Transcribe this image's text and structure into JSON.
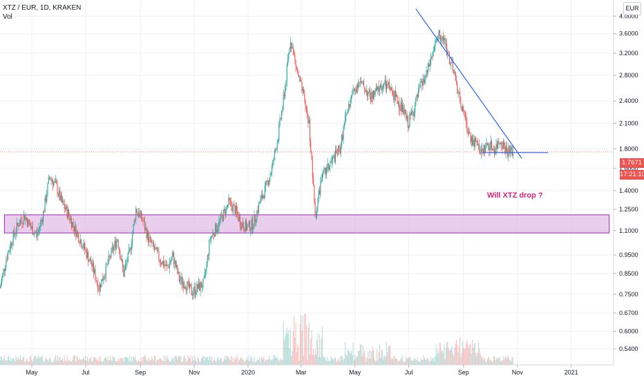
{
  "header": {
    "title": "XTZ / EUR, 1D, KRAKEN",
    "volume_label": "Vol"
  },
  "currency_button": "EUR",
  "annotation": "Will XTZ drop ?",
  "last_price_label": "1.7671",
  "countdown_label": "17:21:10",
  "colors": {
    "up": "#26a69a",
    "down": "#ef5350",
    "trendline": "#2962ff",
    "zone_fill": "#e1bee7",
    "zone_border": "#9c27b0",
    "annotation": "#d6247c",
    "last_price": "#ef5350"
  },
  "chart_data": {
    "type": "candlestick",
    "log_scale": true,
    "grid": true,
    "x_tick_labels": [
      "May",
      "Jul",
      "Sep",
      "Nov",
      "2020",
      "Mar",
      "May",
      "Jul",
      "Sep",
      "Nov",
      "2021"
    ],
    "y_tick_labels": [
      "4.0000",
      "3.6000",
      "3.2000",
      "2.8000",
      "2.4000",
      "2.1000",
      "1.8000",
      "1.6000",
      "1.4000",
      "1.2500",
      "1.1000",
      "0.9500",
      "0.8500",
      "0.7500",
      "0.6700",
      "0.6000",
      "0.5400"
    ],
    "y_range": [
      0.52,
      4.3
    ],
    "x_range": [
      "2019-03-26",
      "2021-02-18"
    ],
    "series": [
      {
        "values": [
          [
            "2019-03-26",
            0.78
          ],
          [
            "2019-04-02",
            0.93
          ],
          [
            "2019-04-09",
            1.05
          ],
          [
            "2019-04-16",
            1.15
          ],
          [
            "2019-04-23",
            1.2
          ],
          [
            "2019-04-30",
            1.12
          ],
          [
            "2019-05-07",
            1.07
          ],
          [
            "2019-05-14",
            1.22
          ],
          [
            "2019-05-21",
            1.52
          ],
          [
            "2019-05-28",
            1.45
          ],
          [
            "2019-06-04",
            1.3
          ],
          [
            "2019-06-11",
            1.22
          ],
          [
            "2019-06-18",
            1.12
          ],
          [
            "2019-06-25",
            1.04
          ],
          [
            "2019-07-02",
            0.96
          ],
          [
            "2019-07-09",
            0.88
          ],
          [
            "2019-07-16",
            0.78
          ],
          [
            "2019-07-23",
            0.86
          ],
          [
            "2019-07-30",
            0.96
          ],
          [
            "2019-08-06",
            1.05
          ],
          [
            "2019-08-13",
            0.85
          ],
          [
            "2019-08-20",
            0.97
          ],
          [
            "2019-08-27",
            1.25
          ],
          [
            "2019-09-03",
            1.18
          ],
          [
            "2019-09-10",
            1.05
          ],
          [
            "2019-09-17",
            0.98
          ],
          [
            "2019-09-24",
            0.92
          ],
          [
            "2019-10-01",
            0.88
          ],
          [
            "2019-10-08",
            0.94
          ],
          [
            "2019-10-15",
            0.82
          ],
          [
            "2019-10-22",
            0.8
          ],
          [
            "2019-10-29",
            0.76
          ],
          [
            "2019-11-05",
            0.78
          ],
          [
            "2019-11-12",
            0.8
          ],
          [
            "2019-11-19",
            1.05
          ],
          [
            "2019-11-26",
            1.12
          ],
          [
            "2019-12-03",
            1.2
          ],
          [
            "2019-12-10",
            1.3
          ],
          [
            "2019-12-17",
            1.25
          ],
          [
            "2019-12-24",
            1.15
          ],
          [
            "2019-12-31",
            1.12
          ],
          [
            "2020-01-07",
            1.15
          ],
          [
            "2020-01-14",
            1.3
          ],
          [
            "2020-01-21",
            1.42
          ],
          [
            "2020-01-28",
            1.6
          ],
          [
            "2020-02-04",
            1.95
          ],
          [
            "2020-02-11",
            2.5
          ],
          [
            "2020-02-18",
            3.5
          ],
          [
            "2020-02-25",
            2.9
          ],
          [
            "2020-03-03",
            2.5
          ],
          [
            "2020-03-10",
            2.1
          ],
          [
            "2020-03-17",
            1.2
          ],
          [
            "2020-03-24",
            1.5
          ],
          [
            "2020-03-31",
            1.6
          ],
          [
            "2020-04-07",
            1.7
          ],
          [
            "2020-04-14",
            1.8
          ],
          [
            "2020-04-21",
            2.2
          ],
          [
            "2020-04-28",
            2.5
          ],
          [
            "2020-05-05",
            2.7
          ],
          [
            "2020-05-12",
            2.6
          ],
          [
            "2020-05-19",
            2.45
          ],
          [
            "2020-05-26",
            2.55
          ],
          [
            "2020-06-02",
            2.65
          ],
          [
            "2020-06-09",
            2.6
          ],
          [
            "2020-06-16",
            2.45
          ],
          [
            "2020-06-23",
            2.3
          ],
          [
            "2020-06-30",
            2.1
          ],
          [
            "2020-07-07",
            2.3
          ],
          [
            "2020-07-14",
            2.6
          ],
          [
            "2020-07-21",
            2.8
          ],
          [
            "2020-07-28",
            3.2
          ],
          [
            "2020-08-04",
            3.6
          ],
          [
            "2020-08-11",
            3.4
          ],
          [
            "2020-08-18",
            3.0
          ],
          [
            "2020-08-25",
            2.6
          ],
          [
            "2020-09-01",
            2.2
          ],
          [
            "2020-09-08",
            1.95
          ],
          [
            "2020-09-15",
            1.85
          ],
          [
            "2020-09-22",
            1.78
          ],
          [
            "2020-09-29",
            1.85
          ],
          [
            "2020-10-06",
            1.8
          ],
          [
            "2020-10-13",
            1.9
          ],
          [
            "2020-10-20",
            1.78
          ],
          [
            "2020-10-27",
            1.77
          ]
        ]
      }
    ],
    "lines": [
      {
        "from": [
          "2020-07-09",
          4.18
        ],
        "to": [
          "2020-11-06",
          1.7
        ]
      },
      {
        "from": [
          "2020-09-22",
          1.76
        ],
        "to": [
          "2020-12-06",
          1.76
        ]
      }
    ],
    "zone": {
      "from": "2019-03-31",
      "to": "2021-02-13",
      "low": 1.085,
      "high": 1.21
    },
    "last_price": 1.7671
  }
}
